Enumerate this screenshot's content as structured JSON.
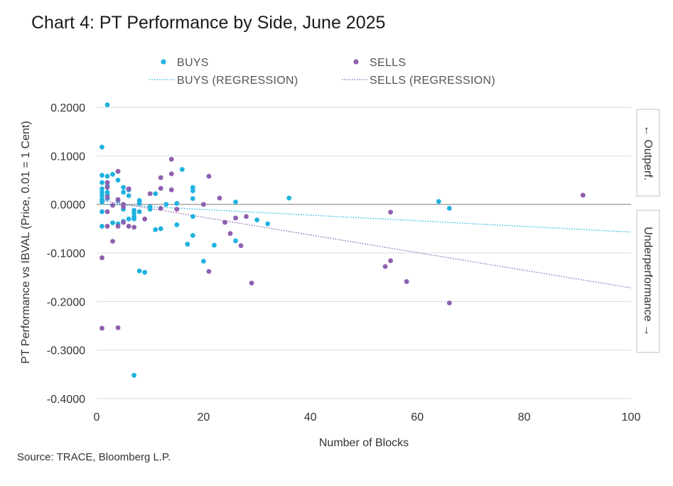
{
  "title": "Chart 4: PT Performance by Side, June 2025",
  "source": "Source: TRACE, Bloomberg L.P.",
  "side_labels": {
    "top": "← Outperf.",
    "bottom": "Underperformance →"
  },
  "colors": {
    "buys": "#1fb2e0",
    "sells": "#8e5fb0",
    "axis": "#a6a6a6",
    "grid": "#d9d9d9"
  },
  "chart_data": {
    "type": "scatter",
    "title": "Chart 4: PT Performance by Side, June 2025",
    "xlabel": "Number of Blocks",
    "ylabel": "PT Performance vs IBVAL (Price, 0.01 = 1 Cent)",
    "xlim": [
      0,
      100
    ],
    "ylim": [
      -0.4,
      0.2
    ],
    "x_ticks": [
      0,
      20,
      40,
      60,
      80,
      100
    ],
    "y_ticks": [
      0.2,
      0.1,
      0.0,
      -0.1,
      -0.2,
      -0.3,
      -0.4
    ],
    "y_tick_labels": [
      "0.2000",
      "0.1000",
      "0.0000",
      "-0.1000",
      "-0.2000",
      "-0.3000",
      "-0.4000"
    ],
    "grid": "horizontal",
    "legend_position": "top",
    "series": [
      {
        "name": "BUYS",
        "marker": "dot",
        "color": "#1fb2e0",
        "points": [
          [
            1,
            0.118
          ],
          [
            1,
            0.06
          ],
          [
            1,
            0.045
          ],
          [
            1,
            0.032
          ],
          [
            1,
            0.025
          ],
          [
            1,
            0.018
          ],
          [
            1,
            0.01
          ],
          [
            1,
            0.005
          ],
          [
            1,
            -0.015
          ],
          [
            1,
            -0.045
          ],
          [
            2,
            0.205
          ],
          [
            2,
            0.058
          ],
          [
            2,
            0.045
          ],
          [
            2,
            0.038
          ],
          [
            2,
            0.025
          ],
          [
            2,
            0.02
          ],
          [
            2,
            0.012
          ],
          [
            3,
            0.062
          ],
          [
            3,
            -0.038
          ],
          [
            4,
            0.05
          ],
          [
            4,
            0.008
          ],
          [
            4,
            -0.04
          ],
          [
            5,
            0.035
          ],
          [
            5,
            0.025
          ],
          [
            5,
            -0.01
          ],
          [
            5,
            -0.035
          ],
          [
            6,
            0.03
          ],
          [
            6,
            0.018
          ],
          [
            6,
            -0.03
          ],
          [
            7,
            -0.012
          ],
          [
            7,
            -0.018
          ],
          [
            7,
            -0.025
          ],
          [
            7,
            -0.03
          ],
          [
            7,
            -0.352
          ],
          [
            8,
            0.008
          ],
          [
            8,
            0.002
          ],
          [
            8,
            -0.015
          ],
          [
            8,
            -0.137
          ],
          [
            9,
            -0.14
          ],
          [
            10,
            -0.005
          ],
          [
            10,
            -0.01
          ],
          [
            11,
            0.022
          ],
          [
            11,
            -0.052
          ],
          [
            12,
            -0.05
          ],
          [
            13,
            0.0
          ],
          [
            15,
            0.002
          ],
          [
            15,
            -0.042
          ],
          [
            16,
            0.072
          ],
          [
            17,
            -0.082
          ],
          [
            18,
            0.035
          ],
          [
            18,
            0.028
          ],
          [
            18,
            0.012
          ],
          [
            18,
            -0.025
          ],
          [
            18,
            -0.064
          ],
          [
            20,
            -0.117
          ],
          [
            22,
            -0.084
          ],
          [
            26,
            0.005
          ],
          [
            26,
            -0.075
          ],
          [
            30,
            -0.032
          ],
          [
            32,
            -0.04
          ],
          [
            36,
            0.013
          ],
          [
            64,
            0.006
          ],
          [
            66,
            -0.008
          ]
        ]
      },
      {
        "name": "SELLS",
        "marker": "dot",
        "color": "#8e5fb0",
        "points": [
          [
            1,
            -0.11
          ],
          [
            1,
            -0.255
          ],
          [
            2,
            0.045
          ],
          [
            2,
            0.035
          ],
          [
            2,
            0.015
          ],
          [
            2,
            -0.015
          ],
          [
            2,
            -0.045
          ],
          [
            3,
            -0.002
          ],
          [
            3,
            -0.076
          ],
          [
            4,
            0.068
          ],
          [
            4,
            0.01
          ],
          [
            4,
            -0.045
          ],
          [
            4,
            -0.254
          ],
          [
            5,
            0.0
          ],
          [
            5,
            -0.005
          ],
          [
            5,
            -0.037
          ],
          [
            6,
            0.032
          ],
          [
            6,
            -0.045
          ],
          [
            7,
            -0.047
          ],
          [
            9,
            -0.03
          ],
          [
            10,
            0.022
          ],
          [
            12,
            0.055
          ],
          [
            12,
            0.033
          ],
          [
            12,
            -0.008
          ],
          [
            14,
            0.093
          ],
          [
            14,
            0.063
          ],
          [
            14,
            0.03
          ],
          [
            15,
            -0.01
          ],
          [
            20,
            0.0
          ],
          [
            21,
            0.058
          ],
          [
            21,
            -0.138
          ],
          [
            23,
            0.013
          ],
          [
            24,
            -0.037
          ],
          [
            25,
            -0.06
          ],
          [
            26,
            -0.028
          ],
          [
            27,
            -0.085
          ],
          [
            28,
            -0.025
          ],
          [
            29,
            -0.162
          ],
          [
            54,
            -0.128
          ],
          [
            55,
            -0.016
          ],
          [
            55,
            -0.116
          ],
          [
            58,
            -0.159
          ],
          [
            66,
            -0.203
          ],
          [
            91,
            0.019
          ]
        ]
      },
      {
        "name": "BUYS (REGRESSION)",
        "marker": "dotted-line",
        "color": "#1fb2e0",
        "x": [
          1,
          100
        ],
        "y": [
          0.0005,
          -0.057
        ]
      },
      {
        "name": "SELLS (REGRESSION)",
        "marker": "dotted-line",
        "color": "#8e5fb0",
        "x": [
          1,
          100
        ],
        "y": [
          0.008,
          -0.172
        ]
      }
    ]
  }
}
